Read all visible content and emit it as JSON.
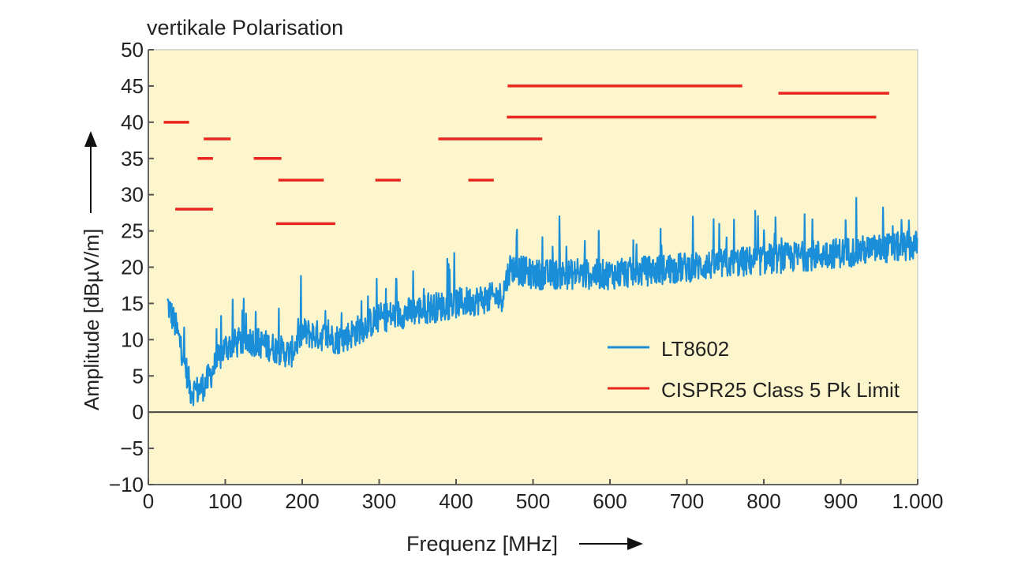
{
  "chart_data": {
    "type": "line",
    "title": "vertikale Polarisation",
    "xlabel": "Frequenz [MHz]",
    "ylabel": "Amplitude [dBµV/m]",
    "xlim": [
      0,
      1000
    ],
    "ylim": [
      -10,
      50
    ],
    "x_ticks": [
      0,
      100,
      200,
      300,
      400,
      500,
      600,
      700,
      800,
      900,
      1000
    ],
    "x_tick_labels": [
      "0",
      "100",
      "200",
      "300",
      "400",
      "500",
      "600",
      "700",
      "800",
      "900",
      "1.000"
    ],
    "y_ticks": [
      50,
      45,
      40,
      35,
      30,
      25,
      20,
      15,
      10,
      5,
      0,
      -5,
      -10
    ],
    "y_tick_labels": [
      "50",
      "45",
      "40",
      "35",
      "30",
      "25",
      "20",
      "15",
      "10",
      "5",
      "0",
      "−5",
      "−10"
    ],
    "grid": false,
    "legend_position": "lower-right",
    "colors": {
      "background": "#fdf5cb",
      "measurement": "#1a8ed8",
      "limit": "#e8261e",
      "zero_line": "#444444"
    },
    "series": [
      {
        "name": "LT8602",
        "kind": "noisy-measurement",
        "trend": [
          [
            25,
            15
          ],
          [
            35,
            12
          ],
          [
            45,
            8
          ],
          [
            55,
            3
          ],
          [
            65,
            3
          ],
          [
            75,
            4
          ],
          [
            90,
            7
          ],
          [
            100,
            9
          ],
          [
            130,
            10
          ],
          [
            160,
            9
          ],
          [
            185,
            8
          ],
          [
            200,
            11
          ],
          [
            250,
            10
          ],
          [
            300,
            13
          ],
          [
            350,
            14
          ],
          [
            400,
            15
          ],
          [
            460,
            16
          ],
          [
            470,
            20
          ],
          [
            500,
            19
          ],
          [
            600,
            19
          ],
          [
            700,
            20
          ],
          [
            800,
            21
          ],
          [
            900,
            22
          ],
          [
            1000,
            23
          ]
        ],
        "noise_amplitude_db": 3
      },
      {
        "name": "CISPR25 Class 5 Pk Limit",
        "kind": "limit-segments",
        "segments": [
          {
            "x": [
              20,
              53
            ],
            "y": 40
          },
          {
            "x": [
              35,
              84
            ],
            "y": 28
          },
          {
            "x": [
              72,
              107
            ],
            "y": 37.7
          },
          {
            "x": [
              64,
              84
            ],
            "y": 35
          },
          {
            "x": [
              137,
              173
            ],
            "y": 35
          },
          {
            "x": [
              169,
              228
            ],
            "y": 32
          },
          {
            "x": [
              166,
              243
            ],
            "y": 26
          },
          {
            "x": [
              295,
              328
            ],
            "y": 32
          },
          {
            "x": [
              416,
              449
            ],
            "y": 32
          },
          {
            "x": [
              377,
              512
            ],
            "y": 37.7
          },
          {
            "x": [
              467,
              772
            ],
            "y": 45
          },
          {
            "x": [
              466,
              946
            ],
            "y": 40.7
          },
          {
            "x": [
              819,
              963
            ],
            "y": 44
          }
        ]
      }
    ]
  }
}
